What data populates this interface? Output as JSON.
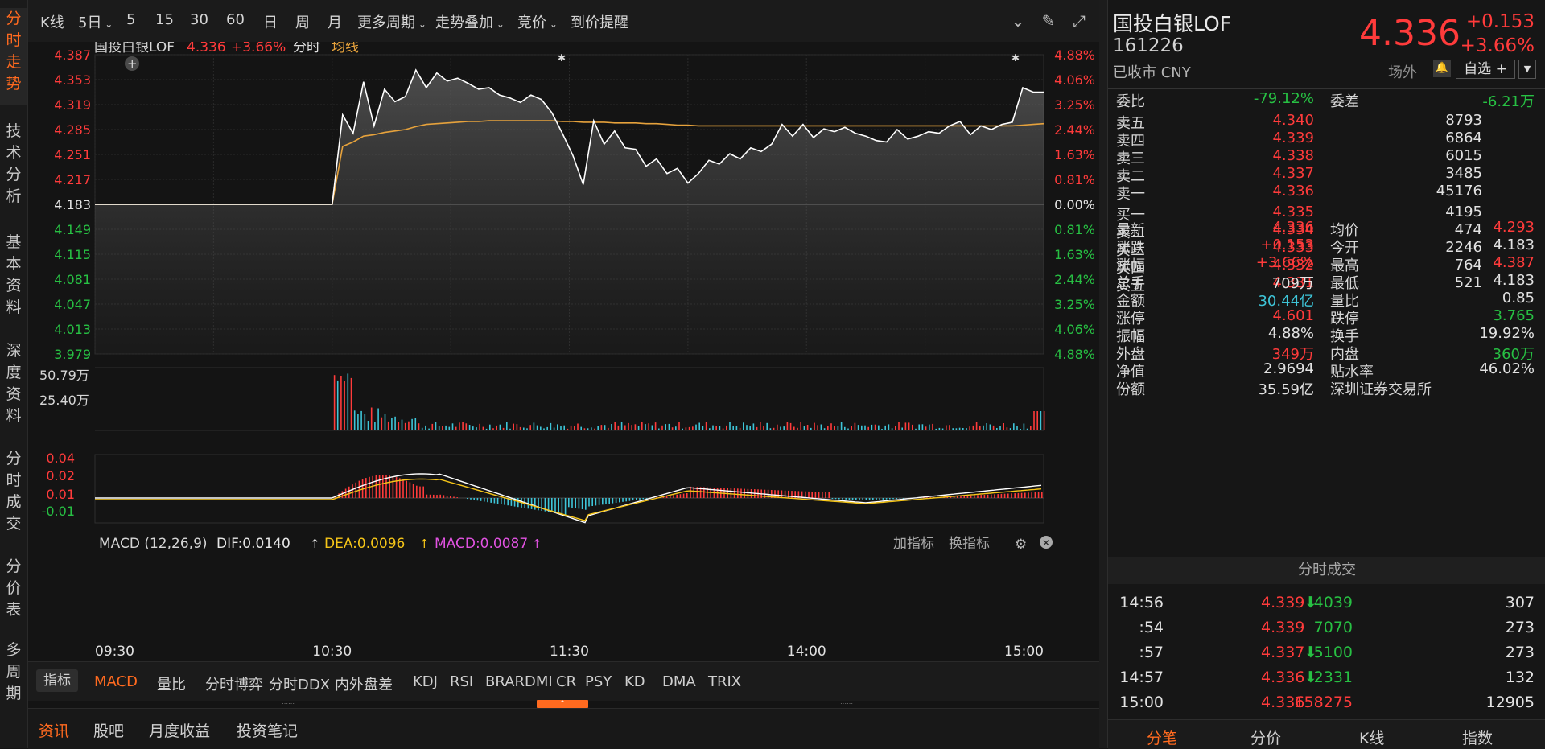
{
  "left_nav": [
    "分时走势",
    "技术分析",
    "基本资料",
    "深度资料",
    "分时成交",
    "分价表",
    "多周期"
  ],
  "toolbar": {
    "items": [
      "K线",
      "5日",
      "5",
      "15",
      "30",
      "60",
      "日",
      "周",
      "月",
      "更多周期",
      "走势叠加",
      "竞价",
      "到价提醒"
    ],
    "dropdowns": [
      "5日",
      "更多周期",
      "走势叠加",
      "竞价"
    ],
    "icons": [
      "collapse-icon",
      "brush-icon",
      "fullscreen-icon"
    ]
  },
  "chart_header": {
    "name": "国投白银LOF",
    "price": "4.336",
    "pct": "+3.66%",
    "mode": "分时",
    "avg_label": "均线"
  },
  "chart_data": {
    "type": "line",
    "price_axis": {
      "left": [
        "4.387",
        "4.353",
        "4.319",
        "4.285",
        "4.251",
        "4.217",
        "4.183",
        "4.149",
        "4.115",
        "4.081",
        "4.047",
        "4.013",
        "3.979"
      ],
      "right": [
        "4.88%",
        "4.06%",
        "3.25%",
        "2.44%",
        "1.63%",
        "0.81%",
        "0.00%",
        "0.81%",
        "1.63%",
        "2.44%",
        "3.25%",
        "4.06%",
        "4.88%"
      ],
      "ylim": [
        3.979,
        4.387
      ],
      "prev_close": 4.183
    },
    "time_axis": [
      "09:30",
      "10:30",
      "11:30",
      "14:00",
      "15:00"
    ],
    "price_series": [
      4.183,
      4.183,
      4.305,
      4.28,
      4.35,
      4.29,
      4.34,
      4.323,
      4.33,
      4.366,
      4.342,
      4.362,
      4.351,
      4.355,
      4.348,
      4.34,
      4.342,
      4.332,
      4.328,
      4.322,
      4.332,
      4.326,
      4.308,
      4.28,
      4.25,
      4.21,
      4.297,
      4.265,
      4.283,
      4.26,
      4.258,
      4.235,
      4.245,
      4.225,
      4.232,
      4.212,
      4.225,
      4.243,
      4.238,
      4.252,
      4.245,
      4.26,
      4.255,
      4.265,
      4.292,
      4.276,
      4.292,
      4.274,
      4.286,
      4.282,
      4.288,
      4.28,
      4.276,
      4.27,
      4.268,
      4.285,
      4.272,
      4.276,
      4.282,
      4.28,
      4.29,
      4.296,
      4.278,
      4.29,
      4.285,
      4.292,
      4.295,
      4.342,
      4.336,
      4.336
    ],
    "avg_series": [
      4.183,
      4.183,
      4.262,
      4.268,
      4.276,
      4.278,
      4.281,
      4.283,
      4.285,
      4.289,
      4.292,
      4.293,
      4.294,
      4.295,
      4.296,
      4.296,
      4.297,
      4.297,
      4.297,
      4.297,
      4.297,
      4.297,
      4.297,
      4.296,
      4.296,
      4.295,
      4.295,
      4.295,
      4.294,
      4.294,
      4.294,
      4.293,
      4.293,
      4.292,
      4.291,
      4.291,
      4.29,
      4.29,
      4.29,
      4.29,
      4.29,
      4.29,
      4.29,
      4.29,
      4.29,
      4.29,
      4.29,
      4.29,
      4.29,
      4.29,
      4.29,
      4.29,
      4.29,
      4.29,
      4.29,
      4.29,
      4.29,
      4.29,
      4.29,
      4.29,
      4.29,
      4.29,
      4.29,
      4.29,
      4.29,
      4.29,
      4.29,
      4.291,
      4.292,
      4.293
    ],
    "volume": {
      "max_label": "50.79万",
      "mid_label": "25.40万"
    },
    "macd": {
      "title": "MACD (12,26,9)",
      "dif": "DIF:0.0140",
      "dea": "DEA:0.0096",
      "macd": "MACD:0.0087",
      "axis": [
        "0.04",
        "0.02",
        "0.01",
        "-0.01"
      ]
    },
    "macd_actions": [
      "加指标",
      "换指标"
    ]
  },
  "indicator_tabs": [
    "MACD",
    "量比",
    "分时博弈",
    "分时DDX",
    "内外盘差",
    "KDJ",
    "RSI",
    "BRAR",
    "DMI",
    "CR",
    "PSY",
    "KD",
    "DMA",
    "TRIX"
  ],
  "indicator_label": "指标",
  "news_tabs": [
    "资讯",
    "股吧",
    "月度收益",
    "投资笔记"
  ],
  "quote": {
    "name": "国投白银LOF",
    "code": "161226",
    "status": "已收市 CNY",
    "price": "4.336",
    "change": "+0.153",
    "pct": "+3.66%",
    "market": "场外",
    "self_select": "自选 +",
    "committee": {
      "ratio_label": "委比",
      "ratio": "-79.12%",
      "diff_label": "委差",
      "diff": "-6.21万"
    },
    "asks": [
      [
        "卖五",
        "4.340",
        "8793"
      ],
      [
        "卖四",
        "4.339",
        "6864"
      ],
      [
        "卖三",
        "4.338",
        "6015"
      ],
      [
        "卖二",
        "4.337",
        "3485"
      ],
      [
        "卖一",
        "4.336",
        "45176"
      ]
    ],
    "bids": [
      [
        "买一",
        "4.335",
        "4195"
      ],
      [
        "买二",
        "4.334",
        "474"
      ],
      [
        "买三",
        "4.333",
        "2246"
      ],
      [
        "买四",
        "4.332",
        "764"
      ],
      [
        "买五",
        "4.331",
        "521"
      ]
    ],
    "stats": [
      [
        "最新",
        "4.336",
        "red",
        "均价",
        "4.293",
        "red"
      ],
      [
        "涨跌",
        "+0.153",
        "red",
        "今开",
        "4.183",
        "wht"
      ],
      [
        "涨幅",
        "+3.66%",
        "red",
        "最高",
        "4.387",
        "red"
      ],
      [
        "总手",
        "709万",
        "wht",
        "最低",
        "4.183",
        "wht"
      ],
      [
        "金额",
        "30.44亿",
        "cyan",
        "量比",
        "0.85",
        "wht"
      ],
      [
        "涨停",
        "4.601",
        "red",
        "跌停",
        "3.765",
        "grn"
      ],
      [
        "振幅",
        "4.88%",
        "wht",
        "换手",
        "19.92%",
        "wht"
      ],
      [
        "外盘",
        "349万",
        "red",
        "内盘",
        "360万",
        "grn"
      ],
      [
        "净值",
        "2.9694",
        "wht",
        "贴水率",
        "46.02%",
        "wht"
      ],
      [
        "份额",
        "35.59亿",
        "wht",
        "深圳证券交易所",
        "",
        "wht"
      ]
    ],
    "trades_title": "分时成交",
    "trades": [
      [
        "14:56",
        "4.339",
        "down",
        "4039",
        "grn",
        "307"
      ],
      [
        ":54",
        "4.339",
        "",
        "7070",
        "grn",
        "273"
      ],
      [
        ":57",
        "4.337",
        "down",
        "5100",
        "grn",
        "273"
      ],
      [
        "14:57",
        "4.336",
        "down",
        "2331",
        "grn",
        "132"
      ],
      [
        "15:00",
        "4.336",
        "",
        "158275",
        "red",
        "12905"
      ]
    ],
    "bottom_tabs": [
      "分笔",
      "分价",
      "K线",
      "指数"
    ]
  }
}
